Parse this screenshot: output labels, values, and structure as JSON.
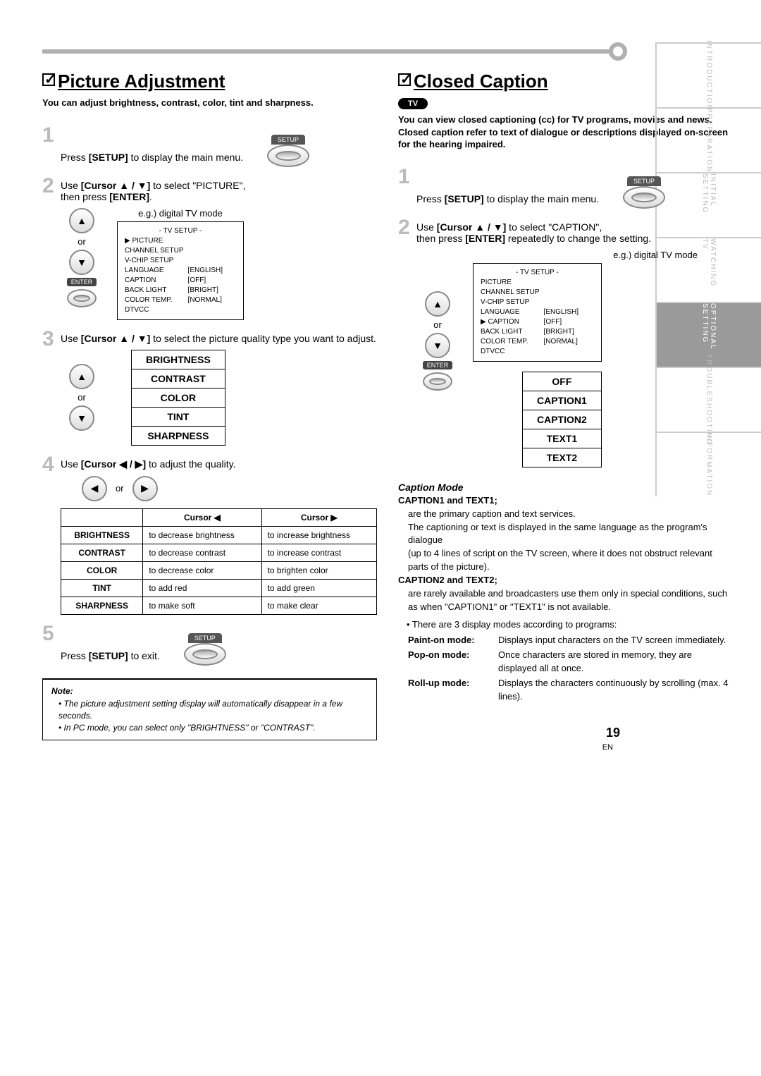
{
  "page_number": "19",
  "page_lang": "EN",
  "side_tabs": [
    "INTRODUCTION",
    "PREPARATION",
    "INITIAL SETTING",
    "WATCHING TV",
    "OPTIONAL SETTING",
    "TROUBLESHOOTING",
    "INFORMATION"
  ],
  "side_active_index": 4,
  "left": {
    "title": "Picture Adjustment",
    "intro": "You can adjust brightness, contrast, color, tint and sharpness.",
    "step1": "Press [SETUP] to display the main menu.",
    "setup_label": "SETUP",
    "step2a": "Use [Cursor ▲ / ▼] to select \"PICTURE\",",
    "step2b": "then press [ENTER].",
    "eg": "e.g.) digital TV mode",
    "or": "or",
    "enter": "ENTER",
    "menu": {
      "title": "- TV SETUP -",
      "rows": [
        [
          "▶ PICTURE",
          ""
        ],
        [
          "CHANNEL SETUP",
          ""
        ],
        [
          "V-CHIP SETUP",
          ""
        ],
        [
          "LANGUAGE",
          "[ENGLISH]"
        ],
        [
          "CAPTION",
          "[OFF]"
        ],
        [
          "BACK LIGHT",
          "[BRIGHT]"
        ],
        [
          "COLOR TEMP.",
          "[NORMAL]"
        ],
        [
          "DTVCC",
          ""
        ]
      ]
    },
    "step3": "Use [Cursor ▲ / ▼] to select the picture quality type you want to adjust.",
    "options": [
      "BRIGHTNESS",
      "CONTRAST",
      "COLOR",
      "TINT",
      "SHARPNESS"
    ],
    "step4": "Use [Cursor ◀ / ▶] to adjust the quality.",
    "table": {
      "h1": "Cursor ◀",
      "h2": "Cursor ▶",
      "rows": [
        [
          "BRIGHTNESS",
          "to decrease brightness",
          "to increase brightness"
        ],
        [
          "CONTRAST",
          "to decrease contrast",
          "to increase contrast"
        ],
        [
          "COLOR",
          "to decrease color",
          "to brighten color"
        ],
        [
          "TINT",
          "to add red",
          "to add green"
        ],
        [
          "SHARPNESS",
          "to make soft",
          "to make clear"
        ]
      ]
    },
    "step5": "Press [SETUP] to exit.",
    "note_title": "Note:",
    "note1": "• The picture adjustment setting display will automatically disappear in a few seconds.",
    "note2": "• In PC mode, you can select only \"BRIGHTNESS\" or \"CONTRAST\"."
  },
  "right": {
    "title": "Closed Caption",
    "tv_badge": "TV",
    "intro": "You can view closed captioning (cc) for TV programs, movies and news. Closed caption refer to text of dialogue or descriptions displayed on-screen for the hearing impaired.",
    "step1": "Press [SETUP] to display the main menu.",
    "setup_label": "SETUP",
    "step2a": "Use [Cursor ▲ / ▼] to select \"CAPTION\",",
    "step2b": "then press [ENTER] repeatedly to change the setting.",
    "eg": "e.g.) digital TV mode",
    "or": "or",
    "enter": "ENTER",
    "menu": {
      "title": "- TV SETUP -",
      "rows": [
        [
          "PICTURE",
          ""
        ],
        [
          "CHANNEL SETUP",
          ""
        ],
        [
          "V-CHIP SETUP",
          ""
        ],
        [
          "LANGUAGE",
          "[ENGLISH]"
        ],
        [
          "▶ CAPTION",
          "[OFF]"
        ],
        [
          "BACK LIGHT",
          "[BRIGHT]"
        ],
        [
          "COLOR TEMP.",
          "[NORMAL]"
        ],
        [
          "DTVCC",
          ""
        ]
      ]
    },
    "options": [
      "OFF",
      "CAPTION1",
      "CAPTION2",
      "TEXT1",
      "TEXT2"
    ],
    "mode_title": "Caption Mode",
    "c1_title": "CAPTION1 and TEXT1;",
    "c1_l1": "are the primary caption and text services.",
    "c1_l2": "The captioning or text is displayed in the same language as the program's dialogue",
    "c1_l3": "(up to 4 lines of script on the TV screen, where it does not obstruct relevant parts of the picture).",
    "c2_title": "CAPTION2 and TEXT2;",
    "c2_l1": "are rarely available and broadcasters use them only in special conditions, such as when \"CAPTION1\" or \"TEXT1\" is not available.",
    "modes_intro": "• There are 3 display modes according to programs:",
    "m1l": "Paint-on mode:",
    "m1r": "Displays input characters on the TV screen immediately.",
    "m2l": "Pop-on mode:",
    "m2r": "Once characters are stored in memory, they are displayed all at once.",
    "m3l": "Roll-up mode:",
    "m3r": "Displays the characters continuously by scrolling (max. 4 lines)."
  }
}
